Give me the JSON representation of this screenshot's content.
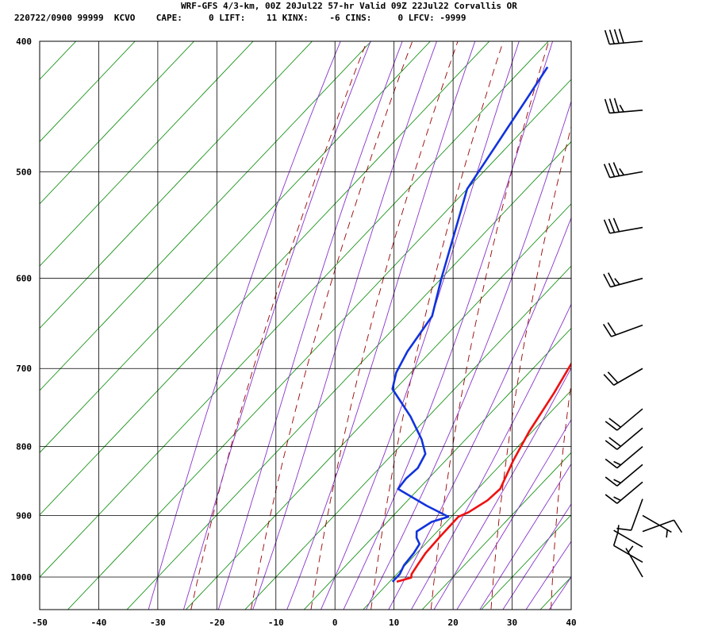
{
  "header": {
    "line1": "WRF-GFS 4/3-km, 00Z 20Jul22 57-hr Valid 09Z 22Jul22 Corvallis OR",
    "line2": "220722/0900 99999  KCVO    CAPE:     0 LIFT:    11 KINX:    -6 CINS:     0 LFCV: -9999"
  },
  "colors": {
    "temperature": "#ee1111",
    "dewpoint": "#1133dd",
    "dry_adiabat": "#990000",
    "moist_adiabat": "#8833cc",
    "isotherm": "#008800",
    "grid": "#000000"
  },
  "chart_data": {
    "type": "line",
    "chart_kind": "skew-T log-P sounding",
    "xlim": [
      -50,
      40
    ],
    "ylim": [
      1040,
      400
    ],
    "y_scale": "log",
    "x_ticks": [
      -50,
      -40,
      -30,
      -20,
      -10,
      0,
      10,
      20,
      30,
      40
    ],
    "y_ticks": [
      400,
      500,
      600,
      700,
      800,
      900,
      1000
    ],
    "grid": true,
    "series": [
      {
        "key": "temperature",
        "points": [
          {
            "p": 1008,
            "x": 11.2
          },
          {
            "p": 1001,
            "x": 13.0
          },
          {
            "p": 995,
            "x": 12.5
          },
          {
            "p": 978,
            "x": 12.0
          },
          {
            "p": 960,
            "x": 11.5
          },
          {
            "p": 935,
            "x": 11.3
          },
          {
            "p": 902,
            "x": 11.2
          },
          {
            "p": 895,
            "x": 12.2
          },
          {
            "p": 877,
            "x": 13.5
          },
          {
            "p": 860,
            "x": 13.8
          },
          {
            "p": 820,
            "x": 11.5
          },
          {
            "p": 780,
            "x": 9.5
          },
          {
            "p": 730,
            "x": 7.5
          },
          {
            "p": 690,
            "x": 5.5
          },
          {
            "p": 650,
            "x": 1.5
          },
          {
            "p": 615,
            "x": -3.0
          },
          {
            "p": 587,
            "x": -6.5
          },
          {
            "p": 552,
            "x": -10.5
          },
          {
            "p": 515,
            "x": -14.5
          },
          {
            "p": 475,
            "x": -19.0
          },
          {
            "p": 445,
            "x": -23.5
          },
          {
            "p": 418,
            "x": -27.0
          }
        ]
      },
      {
        "key": "dewpoint",
        "points": [
          {
            "p": 1008,
            "x": 10.5
          },
          {
            "p": 995,
            "x": 10.5
          },
          {
            "p": 980,
            "x": 9.8
          },
          {
            "p": 960,
            "x": 9.5
          },
          {
            "p": 945,
            "x": 9.0
          },
          {
            "p": 935,
            "x": 7.5
          },
          {
            "p": 925,
            "x": 6.5
          },
          {
            "p": 910,
            "x": 7.5
          },
          {
            "p": 902,
            "x": 9.5
          },
          {
            "p": 885,
            "x": 4.0
          },
          {
            "p": 860,
            "x": -3.5
          },
          {
            "p": 845,
            "x": -3.8
          },
          {
            "p": 830,
            "x": -3.5
          },
          {
            "p": 810,
            "x": -4.5
          },
          {
            "p": 790,
            "x": -7.5
          },
          {
            "p": 760,
            "x": -13.0
          },
          {
            "p": 725,
            "x": -20.5
          },
          {
            "p": 705,
            "x": -22.5
          },
          {
            "p": 680,
            "x": -24.0
          },
          {
            "p": 640,
            "x": -25.5
          },
          {
            "p": 600,
            "x": -30.0
          },
          {
            "p": 535,
            "x": -37.5
          },
          {
            "p": 515,
            "x": -40.0
          },
          {
            "p": 480,
            "x": -42.0
          },
          {
            "p": 440,
            "x": -44.5
          },
          {
            "p": 418,
            "x": -46.0
          }
        ]
      }
    ],
    "isotherm_values": [
      -130,
      -120,
      -110,
      -100,
      -90,
      -80,
      -70,
      -60,
      -50,
      -40,
      -30,
      -20,
      -10,
      0,
      10,
      20,
      30,
      40
    ],
    "dry_adiabat_theta_k": [
      250,
      260,
      270,
      280,
      290,
      300,
      310,
      320,
      330,
      340,
      350,
      360,
      370,
      380,
      390,
      400,
      410,
      420,
      430,
      440
    ],
    "moist_adiabat_t1000_c": [
      -30,
      -24,
      -18,
      -12,
      -6,
      0,
      4,
      8,
      12,
      16,
      20,
      24,
      28,
      32,
      36,
      40
    ],
    "wind_barbs": [
      {
        "p": 1000,
        "dir": 330,
        "spd": 5
      },
      {
        "p": 975,
        "dir": 300,
        "spd": 10
      },
      {
        "p": 950,
        "dir": 300,
        "spd": 5
      },
      {
        "p": 925,
        "dir": 70,
        "spd": 10
      },
      {
        "p": 900,
        "dir": 120,
        "spd": 5
      },
      {
        "p": 875,
        "dir": 200,
        "spd": 10
      },
      {
        "p": 850,
        "dir": 230,
        "spd": 15
      },
      {
        "p": 825,
        "dir": 230,
        "spd": 15
      },
      {
        "p": 800,
        "dir": 230,
        "spd": 15
      },
      {
        "p": 775,
        "dir": 230,
        "spd": 20
      },
      {
        "p": 750,
        "dir": 230,
        "spd": 20
      },
      {
        "p": 700,
        "dir": 240,
        "spd": 20
      },
      {
        "p": 650,
        "dir": 250,
        "spd": 20
      },
      {
        "p": 600,
        "dir": 255,
        "spd": 25
      },
      {
        "p": 550,
        "dir": 260,
        "spd": 30
      },
      {
        "p": 500,
        "dir": 260,
        "spd": 35
      },
      {
        "p": 450,
        "dir": 265,
        "spd": 35
      },
      {
        "p": 400,
        "dir": 265,
        "spd": 40
      }
    ]
  }
}
